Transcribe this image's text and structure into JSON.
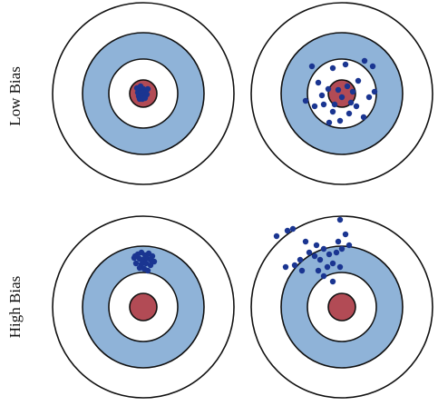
{
  "row_labels": {
    "low_bias": "Low Bias",
    "high_bias": "High Bias"
  },
  "colors": {
    "outer_ring": "#ffffff",
    "middle_ring": "#8fb3d8",
    "inner_ring": "#ffffff",
    "bullseye": "#b24b55",
    "stroke": "#111111",
    "dot": "#1a3591"
  },
  "targets": [
    {
      "name": "target-low-bias-low-variance",
      "points": [
        [
          -4,
          -4
        ],
        [
          -2,
          -6
        ],
        [
          0,
          -5
        ],
        [
          2,
          -3
        ],
        [
          -6,
          -1
        ],
        [
          -3,
          0
        ],
        [
          0,
          -1
        ],
        [
          3,
          -2
        ],
        [
          -5,
          3
        ],
        [
          -2,
          3
        ],
        [
          1,
          2
        ],
        [
          4,
          1
        ],
        [
          -4,
          6
        ],
        [
          -1,
          6
        ],
        [
          2,
          5
        ],
        [
          -7,
          -6
        ],
        [
          5,
          -5
        ],
        [
          -3,
          -8
        ]
      ]
    },
    {
      "name": "target-low-bias-high-variance",
      "points": [
        [
          -33,
          -30
        ],
        [
          -26,
          -12
        ],
        [
          -10,
          -28
        ],
        [
          4,
          -32
        ],
        [
          25,
          -36
        ],
        [
          34,
          -30
        ],
        [
          -22,
          2
        ],
        [
          -20,
          12
        ],
        [
          -10,
          20
        ],
        [
          -4,
          -4
        ],
        [
          0,
          4
        ],
        [
          6,
          -8
        ],
        [
          12,
          -2
        ],
        [
          -15,
          -5
        ],
        [
          10,
          10
        ],
        [
          16,
          14
        ],
        [
          30,
          4
        ],
        [
          36,
          -2
        ],
        [
          -40,
          8
        ],
        [
          -30,
          14
        ],
        [
          -14,
          32
        ],
        [
          -2,
          30
        ],
        [
          8,
          22
        ],
        [
          24,
          26
        ],
        [
          -8,
          12
        ],
        [
          18,
          -14
        ]
      ]
    },
    {
      "name": "target-high-bias-low-variance",
      "points": [
        [
          -6,
          -58
        ],
        [
          -2,
          -60
        ],
        [
          2,
          -57
        ],
        [
          6,
          -59
        ],
        [
          -10,
          -54
        ],
        [
          -4,
          -53
        ],
        [
          0,
          -52
        ],
        [
          4,
          -54
        ],
        [
          8,
          -52
        ],
        [
          12,
          -50
        ],
        [
          -8,
          -48
        ],
        [
          -2,
          -47
        ],
        [
          3,
          -48
        ],
        [
          8,
          -46
        ],
        [
          -4,
          -43
        ],
        [
          1,
          -42
        ],
        [
          5,
          -40
        ],
        [
          -9,
          -56
        ],
        [
          10,
          -56
        ]
      ]
    },
    {
      "name": "target-high-bias-high-variance",
      "points": [
        [
          -72,
          -78
        ],
        [
          -60,
          -84
        ],
        [
          -54,
          -86
        ],
        [
          -28,
          -68
        ],
        [
          -40,
          -72
        ],
        [
          -36,
          -60
        ],
        [
          -30,
          -56
        ],
        [
          -20,
          -64
        ],
        [
          -24,
          -52
        ],
        [
          -14,
          -58
        ],
        [
          -10,
          -48
        ],
        [
          -16,
          -44
        ],
        [
          -6,
          -60
        ],
        [
          -4,
          -72
        ],
        [
          0,
          -64
        ],
        [
          4,
          -80
        ],
        [
          8,
          -68
        ],
        [
          -2,
          -96
        ],
        [
          -62,
          -44
        ],
        [
          -52,
          -46
        ],
        [
          -44,
          -40
        ],
        [
          -26,
          -40
        ],
        [
          -20,
          -34
        ],
        [
          -10,
          -28
        ],
        [
          -2,
          -44
        ],
        [
          -46,
          -52
        ]
      ]
    }
  ]
}
